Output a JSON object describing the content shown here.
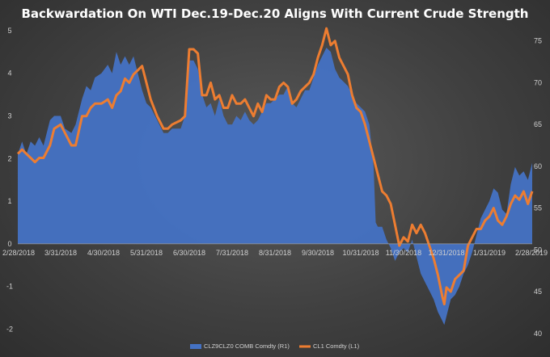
{
  "chart_data": {
    "type": "area+line",
    "title": "Backwardation On WTI Dec.19-Dec.20 Aligns With Current Crude Strength",
    "x_tick_labels": [
      "2/28/2018",
      "3/31/2018",
      "4/30/2018",
      "5/31/2018",
      "6/30/2018",
      "7/31/2018",
      "8/31/2018",
      "9/30/2018",
      "10/31/2018",
      "11/30/2018",
      "12/31/2018",
      "1/31/2019",
      "2/28/2019"
    ],
    "y_left": {
      "ticks": [
        "-2",
        "-1",
        "0",
        "1",
        "2",
        "3",
        "4",
        "5"
      ],
      "min": -2.2,
      "max": 5.15
    },
    "y_right": {
      "ticks": [
        "40",
        "45",
        "50",
        "55",
        "60",
        "65",
        "70",
        "75"
      ],
      "min": 39.5,
      "max": 77
    },
    "x_range": [
      0,
      12
    ],
    "series": [
      {
        "name": "CLZ9CLZ0 COMB Comdty  (R1)",
        "kind": "area",
        "axis": "left",
        "color": "#4472C4",
        "points": [
          [
            0,
            2.1
          ],
          [
            0.1,
            2.4
          ],
          [
            0.2,
            2.1
          ],
          [
            0.3,
            2.4
          ],
          [
            0.4,
            2.3
          ],
          [
            0.5,
            2.5
          ],
          [
            0.6,
            2.3
          ],
          [
            0.75,
            2.9
          ],
          [
            0.85,
            3.0
          ],
          [
            1.0,
            3.0
          ],
          [
            1.1,
            2.7
          ],
          [
            1.25,
            2.6
          ],
          [
            1.35,
            2.8
          ],
          [
            1.5,
            3.4
          ],
          [
            1.6,
            3.7
          ],
          [
            1.7,
            3.6
          ],
          [
            1.8,
            3.9
          ],
          [
            1.95,
            4.0
          ],
          [
            2.1,
            4.2
          ],
          [
            2.2,
            4.0
          ],
          [
            2.3,
            4.5
          ],
          [
            2.4,
            4.2
          ],
          [
            2.5,
            4.4
          ],
          [
            2.6,
            4.2
          ],
          [
            2.7,
            4.4
          ],
          [
            2.8,
            4.0
          ],
          [
            2.9,
            3.6
          ],
          [
            3.0,
            3.3
          ],
          [
            3.1,
            3.2
          ],
          [
            3.25,
            2.9
          ],
          [
            3.4,
            2.6
          ],
          [
            3.5,
            2.6
          ],
          [
            3.6,
            2.7
          ],
          [
            3.8,
            2.7
          ],
          [
            3.9,
            3.0
          ],
          [
            4.0,
            4.3
          ],
          [
            4.1,
            4.3
          ],
          [
            4.2,
            4.1
          ],
          [
            4.3,
            3.5
          ],
          [
            4.4,
            3.2
          ],
          [
            4.5,
            3.3
          ],
          [
            4.6,
            3.0
          ],
          [
            4.7,
            3.4
          ],
          [
            4.8,
            3.0
          ],
          [
            4.9,
            2.8
          ],
          [
            5.0,
            2.8
          ],
          [
            5.1,
            3.0
          ],
          [
            5.2,
            2.9
          ],
          [
            5.3,
            3.1
          ],
          [
            5.4,
            2.9
          ],
          [
            5.5,
            2.8
          ],
          [
            5.6,
            2.9
          ],
          [
            5.7,
            3.1
          ],
          [
            5.8,
            3.3
          ],
          [
            5.9,
            3.3
          ],
          [
            6.0,
            3.4
          ],
          [
            6.1,
            3.5
          ],
          [
            6.2,
            3.5
          ],
          [
            6.3,
            3.7
          ],
          [
            6.4,
            3.3
          ],
          [
            6.5,
            3.2
          ],
          [
            6.6,
            3.4
          ],
          [
            6.7,
            3.6
          ],
          [
            6.8,
            3.6
          ],
          [
            6.9,
            3.9
          ],
          [
            7.0,
            4.2
          ],
          [
            7.1,
            4.4
          ],
          [
            7.2,
            4.6
          ],
          [
            7.3,
            4.5
          ],
          [
            7.4,
            4.1
          ],
          [
            7.5,
            3.9
          ],
          [
            7.6,
            3.8
          ],
          [
            7.7,
            3.7
          ],
          [
            7.8,
            3.5
          ],
          [
            7.9,
            3.3
          ],
          [
            8.0,
            3.2
          ],
          [
            8.1,
            3.1
          ],
          [
            8.2,
            2.8
          ],
          [
            8.3,
            1.8
          ],
          [
            8.35,
            0.5
          ],
          [
            8.4,
            0.4
          ],
          [
            8.5,
            0.4
          ],
          [
            8.6,
            0.1
          ],
          [
            8.7,
            -0.1
          ],
          [
            8.8,
            -0.4
          ],
          [
            8.9,
            -0.2
          ],
          [
            9.0,
            -0.1
          ],
          [
            9.1,
            -0.2
          ],
          [
            9.2,
            0.1
          ],
          [
            9.3,
            -0.3
          ],
          [
            9.4,
            -0.7
          ],
          [
            9.5,
            -0.9
          ],
          [
            9.6,
            -1.1
          ],
          [
            9.7,
            -1.3
          ],
          [
            9.8,
            -1.6
          ],
          [
            9.9,
            -1.8
          ],
          [
            9.95,
            -1.9
          ],
          [
            10.0,
            -1.7
          ],
          [
            10.1,
            -1.3
          ],
          [
            10.2,
            -1.2
          ],
          [
            10.3,
            -1.0
          ],
          [
            10.4,
            -0.7
          ],
          [
            10.5,
            -0.5
          ],
          [
            10.6,
            -0.2
          ],
          [
            10.7,
            0.2
          ],
          [
            10.8,
            0.6
          ],
          [
            10.9,
            0.8
          ],
          [
            11.0,
            1.0
          ],
          [
            11.1,
            1.3
          ],
          [
            11.2,
            1.2
          ],
          [
            11.3,
            0.8
          ],
          [
            11.4,
            0.7
          ],
          [
            11.5,
            1.4
          ],
          [
            11.6,
            1.8
          ],
          [
            11.7,
            1.6
          ],
          [
            11.8,
            1.7
          ],
          [
            11.9,
            1.5
          ],
          [
            12.0,
            1.9
          ]
        ]
      },
      {
        "name": "CL1 Comdty  (L1)",
        "kind": "line",
        "axis": "right",
        "color": "#ED7D31",
        "points": [
          [
            0,
            61.5
          ],
          [
            0.1,
            62.0
          ],
          [
            0.2,
            61.5
          ],
          [
            0.3,
            61.0
          ],
          [
            0.4,
            60.5
          ],
          [
            0.5,
            61.0
          ],
          [
            0.6,
            61.0
          ],
          [
            0.75,
            62.5
          ],
          [
            0.85,
            64.5
          ],
          [
            1.0,
            65.0
          ],
          [
            1.1,
            64.0
          ],
          [
            1.25,
            62.5
          ],
          [
            1.35,
            62.5
          ],
          [
            1.5,
            66.0
          ],
          [
            1.6,
            66.0
          ],
          [
            1.7,
            67.0
          ],
          [
            1.8,
            67.5
          ],
          [
            1.95,
            67.5
          ],
          [
            2.1,
            68.0
          ],
          [
            2.2,
            67.0
          ],
          [
            2.3,
            68.5
          ],
          [
            2.4,
            69.0
          ],
          [
            2.5,
            70.5
          ],
          [
            2.6,
            70.0
          ],
          [
            2.7,
            71.0
          ],
          [
            2.8,
            71.5
          ],
          [
            2.9,
            72.0
          ],
          [
            3.0,
            70.0
          ],
          [
            3.1,
            68.0
          ],
          [
            3.25,
            66.0
          ],
          [
            3.4,
            64.5
          ],
          [
            3.5,
            64.5
          ],
          [
            3.6,
            65.0
          ],
          [
            3.8,
            65.5
          ],
          [
            3.9,
            66.0
          ],
          [
            4.0,
            74.0
          ],
          [
            4.1,
            74.0
          ],
          [
            4.2,
            73.5
          ],
          [
            4.3,
            68.5
          ],
          [
            4.4,
            68.5
          ],
          [
            4.5,
            70.0
          ],
          [
            4.6,
            68.0
          ],
          [
            4.7,
            68.5
          ],
          [
            4.8,
            67.0
          ],
          [
            4.9,
            67.0
          ],
          [
            5.0,
            68.5
          ],
          [
            5.1,
            67.5
          ],
          [
            5.2,
            67.5
          ],
          [
            5.3,
            68.0
          ],
          [
            5.4,
            67.0
          ],
          [
            5.5,
            66.0
          ],
          [
            5.6,
            67.5
          ],
          [
            5.7,
            66.5
          ],
          [
            5.8,
            68.5
          ],
          [
            5.9,
            68.0
          ],
          [
            6.0,
            68.0
          ],
          [
            6.1,
            69.5
          ],
          [
            6.2,
            70.0
          ],
          [
            6.3,
            69.5
          ],
          [
            6.4,
            67.5
          ],
          [
            6.5,
            68.0
          ],
          [
            6.6,
            69.0
          ],
          [
            6.7,
            69.5
          ],
          [
            6.8,
            70.0
          ],
          [
            6.9,
            71.0
          ],
          [
            7.0,
            73.0
          ],
          [
            7.1,
            74.5
          ],
          [
            7.2,
            76.5
          ],
          [
            7.3,
            74.5
          ],
          [
            7.4,
            75.0
          ],
          [
            7.5,
            73.0
          ],
          [
            7.6,
            72.0
          ],
          [
            7.7,
            71.0
          ],
          [
            7.8,
            68.5
          ],
          [
            7.9,
            67.0
          ],
          [
            8.0,
            66.5
          ],
          [
            8.1,
            65.0
          ],
          [
            8.2,
            63.0
          ],
          [
            8.3,
            61.0
          ],
          [
            8.4,
            59.0
          ],
          [
            8.5,
            57.0
          ],
          [
            8.6,
            56.5
          ],
          [
            8.7,
            55.5
          ],
          [
            8.8,
            53.0
          ],
          [
            8.9,
            50.5
          ],
          [
            9.0,
            51.5
          ],
          [
            9.1,
            51.0
          ],
          [
            9.2,
            53.0
          ],
          [
            9.3,
            52.0
          ],
          [
            9.4,
            53.0
          ],
          [
            9.5,
            52.0
          ],
          [
            9.6,
            50.5
          ],
          [
            9.7,
            49.0
          ],
          [
            9.8,
            47.0
          ],
          [
            9.9,
            44.5
          ],
          [
            9.95,
            43.5
          ],
          [
            10.0,
            45.5
          ],
          [
            10.1,
            45.0
          ],
          [
            10.2,
            46.5
          ],
          [
            10.3,
            47.0
          ],
          [
            10.4,
            47.5
          ],
          [
            10.5,
            50.5
          ],
          [
            10.6,
            51.5
          ],
          [
            10.7,
            52.5
          ],
          [
            10.8,
            52.5
          ],
          [
            10.9,
            53.5
          ],
          [
            11.0,
            54.0
          ],
          [
            11.1,
            55.0
          ],
          [
            11.2,
            53.5
          ],
          [
            11.3,
            53.0
          ],
          [
            11.4,
            54.0
          ],
          [
            11.5,
            55.5
          ],
          [
            11.6,
            56.5
          ],
          [
            11.7,
            56.0
          ],
          [
            11.8,
            57.0
          ],
          [
            11.9,
            55.5
          ],
          [
            12.0,
            57.0
          ]
        ]
      }
    ],
    "legend": [
      "CLZ9CLZ0 COMB Comdty  (R1)",
      "CL1 Comdty  (L1)"
    ]
  }
}
